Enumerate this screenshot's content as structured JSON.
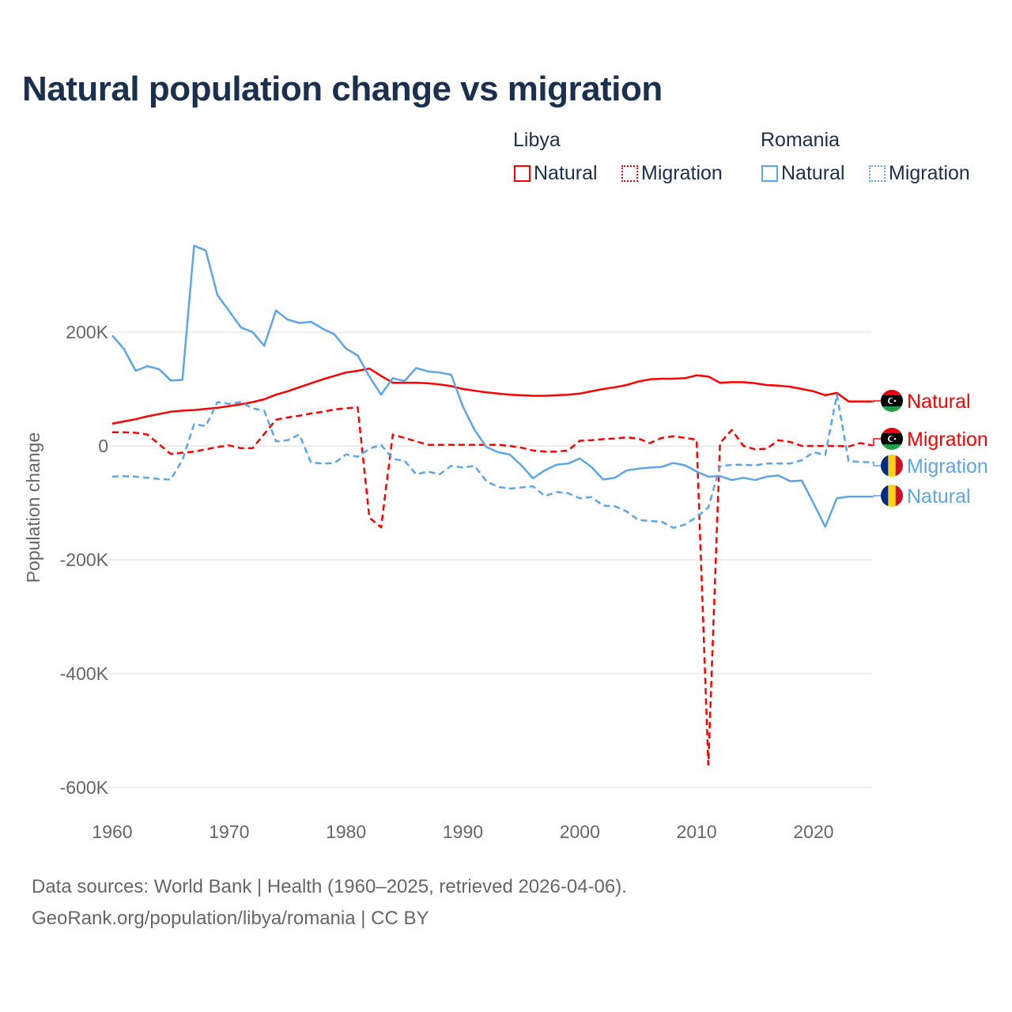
{
  "chart_data": {
    "type": "line",
    "title": "Natural population change vs migration",
    "ylabel": "Population change",
    "xlabel": "",
    "ylim": [
      -600000,
      360000
    ],
    "xlim": [
      1960,
      2025
    ],
    "yticks": [
      {
        "v": 200000,
        "label": "200K"
      },
      {
        "v": 0,
        "label": "0"
      },
      {
        "v": -200000,
        "label": "-200K"
      },
      {
        "v": -400000,
        "label": "-400K"
      },
      {
        "v": -600000,
        "label": "-600K"
      }
    ],
    "xticks": [
      1960,
      1970,
      1980,
      1990,
      2000,
      2010,
      2020
    ],
    "grid": true,
    "legend": {
      "placement": "top-right",
      "groups": [
        {
          "country": "Libya",
          "items": [
            "Natural",
            "Migration"
          ]
        },
        {
          "country": "Romania",
          "items": [
            "Natural",
            "Migration"
          ]
        }
      ]
    },
    "series": [
      {
        "name": "Libya Natural",
        "country": "Libya",
        "kind": "Natural",
        "color": "#ff0000",
        "dash": false,
        "end_label": "Natural",
        "x_start": 1960,
        "values": [
          39,
          43,
          47,
          52,
          56,
          60,
          62,
          63,
          65,
          67,
          70,
          73,
          77,
          82,
          90,
          96,
          103,
          110,
          117,
          123,
          129,
          132,
          136,
          123,
          111,
          111,
          111,
          110,
          108,
          105,
          100,
          97,
          94,
          92,
          90,
          89,
          88,
          88,
          89,
          90,
          92,
          96,
          100,
          103,
          107,
          113,
          117,
          118,
          118,
          119,
          124,
          122,
          111,
          112,
          112,
          110,
          107,
          106,
          104,
          100,
          96,
          89,
          93,
          78,
          78,
          78
        ]
      },
      {
        "name": "Libya Migration",
        "country": "Libya",
        "kind": "Migration",
        "color": "#ff0000",
        "dash": true,
        "end_label": "Migration",
        "x_start": 1960,
        "values": [
          24,
          24,
          23,
          20,
          3,
          -14,
          -12,
          -10,
          -6,
          -2,
          1,
          -4,
          -4,
          21,
          46,
          50,
          53,
          57,
          60,
          64,
          66,
          68,
          -126,
          -143,
          20,
          14,
          8,
          2,
          2,
          2,
          2,
          2,
          2,
          2,
          0,
          -3,
          -8,
          -10,
          -10,
          -8,
          9,
          10,
          12,
          13,
          15,
          13,
          5,
          14,
          17,
          14,
          11,
          -560,
          5,
          28,
          0,
          -6,
          -5,
          10,
          7,
          0,
          0,
          0,
          0,
          -1,
          5,
          1
        ]
      },
      {
        "name": "Romania Migration",
        "country": "Romania",
        "kind": "Migration",
        "color": "#5ba6ea",
        "dash": true,
        "end_label": "Migration",
        "x_start": 1960,
        "values": [
          -54,
          -53,
          -54,
          -56,
          -58,
          -59,
          -25,
          38,
          35,
          77,
          74,
          77,
          66,
          62,
          8,
          10,
          20,
          -29,
          -31,
          -30,
          -15,
          -19,
          -5,
          2,
          -23,
          -26,
          -50,
          -45,
          -50,
          -35,
          -38,
          -35,
          -62,
          -72,
          -75,
          -73,
          -71,
          -88,
          -81,
          -83,
          -92,
          -90,
          -105,
          -106,
          -115,
          -130,
          -132,
          -133,
          -144,
          -138,
          -125,
          -108,
          -36,
          -33,
          -33,
          -34,
          -31,
          -31,
          -31,
          -25,
          -11,
          -16,
          90,
          -27,
          -28,
          -29
        ]
      },
      {
        "name": "Romania Natural",
        "country": "Romania",
        "kind": "Natural",
        "color": "#5ba6ea",
        "dash": false,
        "end_label": "Natural",
        "x_start": 1960,
        "values": [
          194,
          170,
          132,
          140,
          135,
          115,
          116,
          352,
          343,
          265,
          237,
          208,
          200,
          176,
          238,
          222,
          216,
          218,
          206,
          196,
          171,
          159,
          122,
          90,
          119,
          114,
          137,
          131,
          129,
          125,
          69,
          28,
          -2,
          -11,
          -15,
          -34,
          -57,
          -43,
          -33,
          -31,
          -22,
          -37,
          -59,
          -56,
          -43,
          -40,
          -38,
          -37,
          -30,
          -34,
          -45,
          -54,
          -53,
          -60,
          -56,
          -60,
          -54,
          -52,
          -62,
          -61,
          -101,
          -142,
          -92,
          -89,
          -89,
          -89
        ]
      }
    ],
    "value_units": "thousands"
  },
  "legend": {
    "libya": "Libya",
    "romania": "Romania",
    "natural": "Natural",
    "migration": "Migration"
  },
  "footer": {
    "line1": "Data sources: World Bank | Health (1960–2025, retrieved 2026-04-06).",
    "line2": "GeoRank.org/population/libya/romania | CC BY"
  },
  "colors": {
    "libya": "#ff0000",
    "romania": "#5ba6ea",
    "title": "#1b2f4e"
  }
}
